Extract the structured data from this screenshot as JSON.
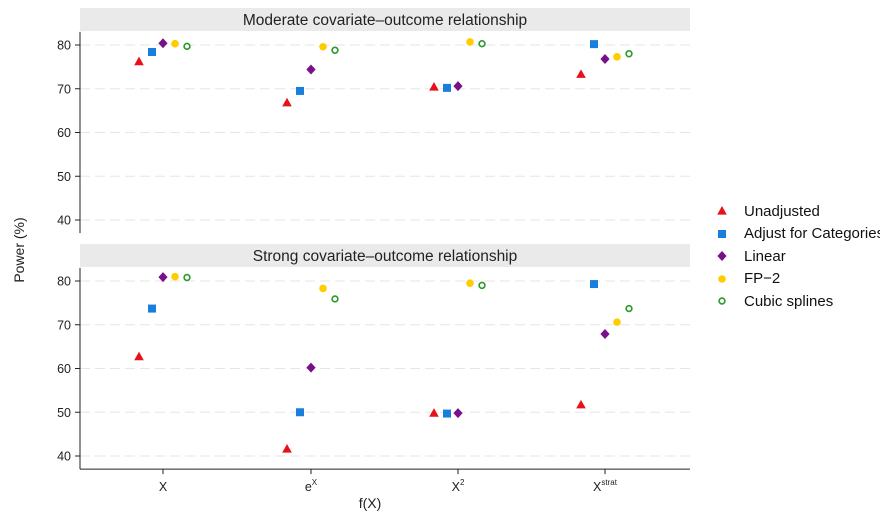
{
  "chart_data": {
    "type": "scatter",
    "ylabel": "Power (%)",
    "xlabel": "f(X)",
    "x_categories": [
      {
        "base": "X",
        "sup": ""
      },
      {
        "base": "e",
        "sup": "X"
      },
      {
        "base": "X",
        "sup": "2"
      },
      {
        "base": "X",
        "sup": "strat"
      }
    ],
    "ylim": [
      37,
      83
    ],
    "yticks": [
      40,
      50,
      60,
      70,
      80
    ],
    "grid": true,
    "legend_position": "right",
    "panels": [
      {
        "title": "Moderate covariate–outcome relationship",
        "series": [
          {
            "name": "Unadjusted",
            "values": [
              76.2,
              66.8,
              70.4,
              73.3
            ]
          },
          {
            "name": "Adjust for Categories",
            "values": [
              78.4,
              69.5,
              70.2,
              80.2
            ]
          },
          {
            "name": "Linear",
            "values": [
              80.4,
              74.4,
              70.6,
              76.8
            ]
          },
          {
            "name": "FP−2",
            "values": [
              80.3,
              79.6,
              80.7,
              77.3
            ]
          },
          {
            "name": "Cubic splines",
            "values": [
              79.7,
              78.8,
              80.3,
              78.0
            ]
          }
        ]
      },
      {
        "title": "Strong covariate–outcome relationship",
        "series": [
          {
            "name": "Unadjusted",
            "values": [
              62.7,
              41.6,
              49.8,
              51.7
            ]
          },
          {
            "name": "Adjust for Categories",
            "values": [
              73.7,
              50.0,
              49.7,
              79.3
            ]
          },
          {
            "name": "Linear",
            "values": [
              80.9,
              60.2,
              49.8,
              67.9
            ]
          },
          {
            "name": "FP−2",
            "values": [
              81.0,
              78.3,
              79.5,
              70.6
            ]
          },
          {
            "name": "Cubic splines",
            "values": [
              80.8,
              75.9,
              79.0,
              73.7
            ]
          }
        ]
      }
    ]
  },
  "legend": [
    {
      "label": "Unadjusted",
      "marker": "triangle",
      "color": "#e8101a"
    },
    {
      "label": "Adjust for Categories",
      "marker": "square",
      "color": "#1a7fdc"
    },
    {
      "label": "Linear",
      "marker": "diamond",
      "color": "#7a0f8a"
    },
    {
      "label": "FP−2",
      "marker": "circle",
      "color": "#ffcc00"
    },
    {
      "label": "Cubic splines",
      "marker": "hollow-circle",
      "color": "#2a9a2a"
    }
  ],
  "colors": {
    "panel_header": "#eaeaea",
    "grid": "#e6e6e6",
    "axis": "#222222"
  }
}
